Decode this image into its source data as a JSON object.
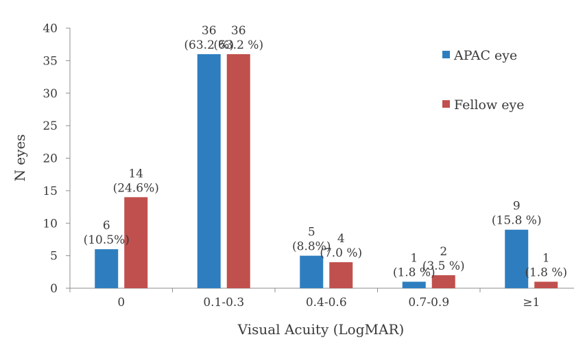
{
  "chart_data": {
    "type": "bar",
    "title": "",
    "xlabel": "Visual Acuity  (LogMAR)",
    "ylabel": "N eyes",
    "ylim": [
      0,
      40
    ],
    "yticks": [
      "0",
      "5",
      "10",
      "15",
      "20",
      "25",
      "30",
      "35",
      "40"
    ],
    "categories": [
      "0",
      "0.1-0.3",
      "0.4-0.6",
      "0.7-0.9",
      "≥1"
    ],
    "grid": false,
    "legend_position": "top-right",
    "series": [
      {
        "name": "APAC eye",
        "color": "#2e7ebf",
        "values": [
          6,
          36,
          5,
          1,
          9
        ],
        "value_labels": [
          "6",
          "36",
          "5",
          "1",
          "9"
        ],
        "pct_labels": [
          "(10.5%)",
          "(63.2 %)",
          "(8.8%)",
          "(1.8 %)",
          "(15.8 %)"
        ]
      },
      {
        "name": "Fellow eye",
        "color": "#c0504d",
        "values": [
          14,
          36,
          4,
          2,
          1
        ],
        "value_labels": [
          "14",
          "36",
          "4",
          "2",
          "1"
        ],
        "pct_labels": [
          "(24.6%)",
          "(63.2 %)",
          "(7.0 %)",
          "(3.5 %)",
          "(1.8 %)"
        ]
      }
    ]
  }
}
